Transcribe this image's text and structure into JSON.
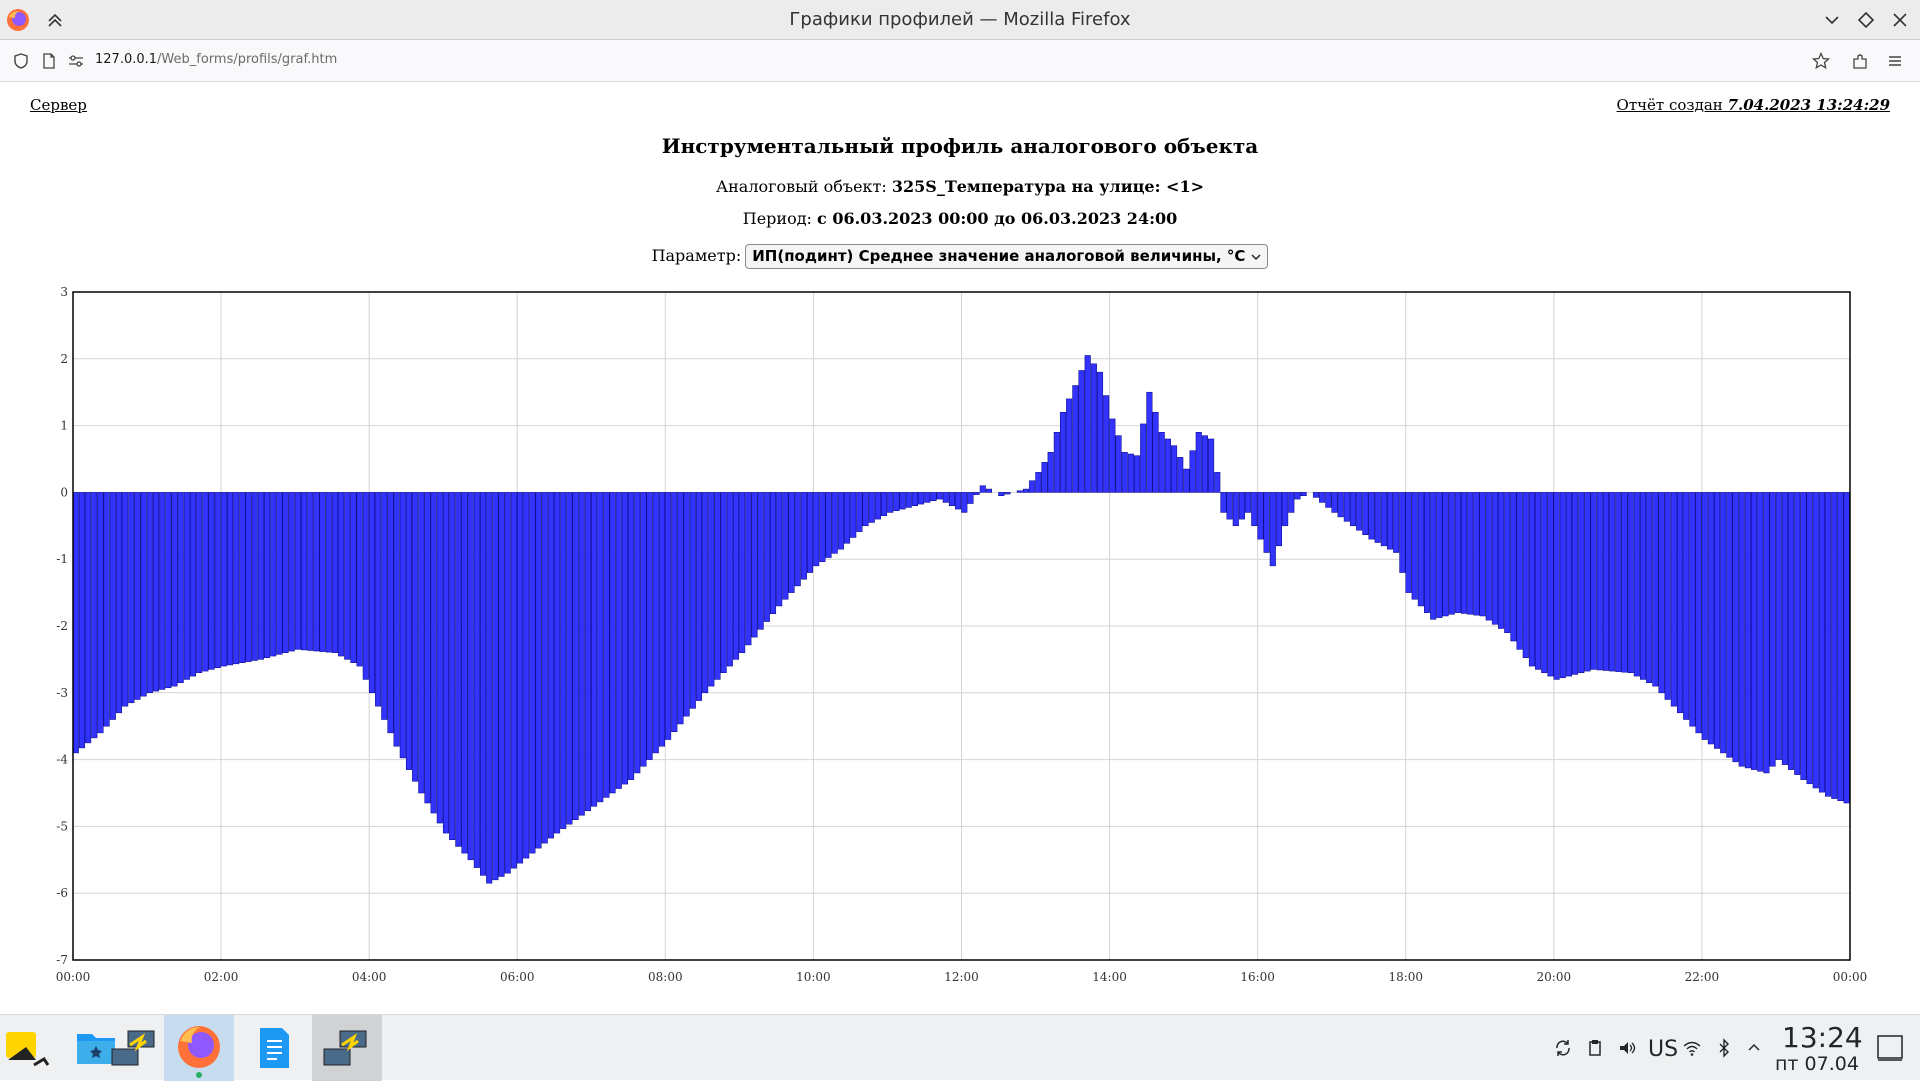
{
  "window": {
    "title": "Графики профилей — Mozilla Firefox"
  },
  "navbar": {
    "url_host": "127.0.0.1",
    "url_path": "/Web_forms/profils/graf.htm"
  },
  "page": {
    "server_link": "Сервер",
    "report_created_label": "Отчёт создан",
    "report_created_value": "7.04.2023 13:24:29",
    "title": "Инструментальный профиль аналогового объекта",
    "object_label": "Аналоговый объект:",
    "object_value": "325S_Температура на улице: <1>",
    "period_label": "Период:",
    "period_value": "с 06.03.2023 00:00 до 06.03.2023 24:00",
    "param_label": "Параметр:",
    "param_value": "ИП(подинт) Среднее значение аналоговой величины, °C"
  },
  "chart_data": {
    "type": "bar",
    "title": "",
    "xlabel": "",
    "ylabel": "",
    "ylim": [
      -7,
      3
    ],
    "y_ticks": [
      3,
      2,
      1,
      0,
      -1,
      -2,
      -3,
      -4,
      -5,
      -6,
      -7
    ],
    "x_ticks": [
      "00:00",
      "02:00",
      "04:00",
      "06:00",
      "08:00",
      "10:00",
      "12:00",
      "14:00",
      "16:00",
      "18:00",
      "20:00",
      "22:00",
      "00:00"
    ],
    "grid": true,
    "bar_color": "#3333ff",
    "bar_outline": "#000080",
    "interval_minutes": 5,
    "keyframes": [
      [
        "00:00",
        -3.9
      ],
      [
        "00:20",
        -3.6
      ],
      [
        "00:40",
        -3.2
      ],
      [
        "01:00",
        -3.0
      ],
      [
        "01:20",
        -2.9
      ],
      [
        "01:40",
        -2.7
      ],
      [
        "02:00",
        -2.6
      ],
      [
        "02:30",
        -2.5
      ],
      [
        "03:00",
        -2.35
      ],
      [
        "03:30",
        -2.4
      ],
      [
        "03:50",
        -2.6
      ],
      [
        "04:00",
        -3.0
      ],
      [
        "04:20",
        -3.8
      ],
      [
        "04:40",
        -4.5
      ],
      [
        "05:00",
        -5.1
      ],
      [
        "05:20",
        -5.5
      ],
      [
        "05:35",
        -5.85
      ],
      [
        "05:50",
        -5.7
      ],
      [
        "06:10",
        -5.4
      ],
      [
        "06:30",
        -5.1
      ],
      [
        "07:00",
        -4.7
      ],
      [
        "07:30",
        -4.3
      ],
      [
        "08:00",
        -3.7
      ],
      [
        "08:30",
        -3.0
      ],
      [
        "09:00",
        -2.4
      ],
      [
        "09:30",
        -1.7
      ],
      [
        "10:00",
        -1.1
      ],
      [
        "10:20",
        -0.85
      ],
      [
        "10:40",
        -0.5
      ],
      [
        "11:00",
        -0.3
      ],
      [
        "11:20",
        -0.2
      ],
      [
        "11:40",
        -0.1
      ],
      [
        "12:00",
        -0.3
      ],
      [
        "12:15",
        0.1
      ],
      [
        "12:30",
        -0.05
      ],
      [
        "12:50",
        0.05
      ],
      [
        "13:00",
        0.3
      ],
      [
        "13:10",
        0.6
      ],
      [
        "13:20",
        1.2
      ],
      [
        "13:30",
        1.6
      ],
      [
        "13:40",
        2.05
      ],
      [
        "13:50",
        1.8
      ],
      [
        "14:00",
        1.1
      ],
      [
        "14:10",
        0.6
      ],
      [
        "14:20",
        0.55
      ],
      [
        "14:30",
        1.5
      ],
      [
        "14:40",
        0.9
      ],
      [
        "14:50",
        0.7
      ],
      [
        "15:00",
        0.35
      ],
      [
        "15:10",
        0.9
      ],
      [
        "15:20",
        0.8
      ],
      [
        "15:25",
        0.3
      ],
      [
        "15:30",
        -0.3
      ],
      [
        "15:40",
        -0.5
      ],
      [
        "15:50",
        -0.3
      ],
      [
        "16:00",
        -0.7
      ],
      [
        "16:10",
        -1.1
      ],
      [
        "16:20",
        -0.5
      ],
      [
        "16:30",
        -0.1
      ],
      [
        "16:40",
        0.0
      ],
      [
        "17:00",
        -0.3
      ],
      [
        "17:30",
        -0.7
      ],
      [
        "17:50",
        -0.9
      ],
      [
        "18:00",
        -1.5
      ],
      [
        "18:20",
        -1.9
      ],
      [
        "18:40",
        -1.8
      ],
      [
        "19:00",
        -1.85
      ],
      [
        "19:20",
        -2.1
      ],
      [
        "19:40",
        -2.6
      ],
      [
        "20:00",
        -2.8
      ],
      [
        "20:30",
        -2.65
      ],
      [
        "21:00",
        -2.7
      ],
      [
        "21:20",
        -2.9
      ],
      [
        "21:40",
        -3.3
      ],
      [
        "22:00",
        -3.7
      ],
      [
        "22:30",
        -4.1
      ],
      [
        "22:50",
        -4.2
      ],
      [
        "23:00",
        -4.0
      ],
      [
        "23:20",
        -4.3
      ],
      [
        "23:40",
        -4.55
      ],
      [
        "23:55",
        -4.65
      ]
    ]
  },
  "taskbar": {
    "keyboard_layout": "US",
    "clock_time": "13:24",
    "clock_date": "пт 07.04"
  }
}
